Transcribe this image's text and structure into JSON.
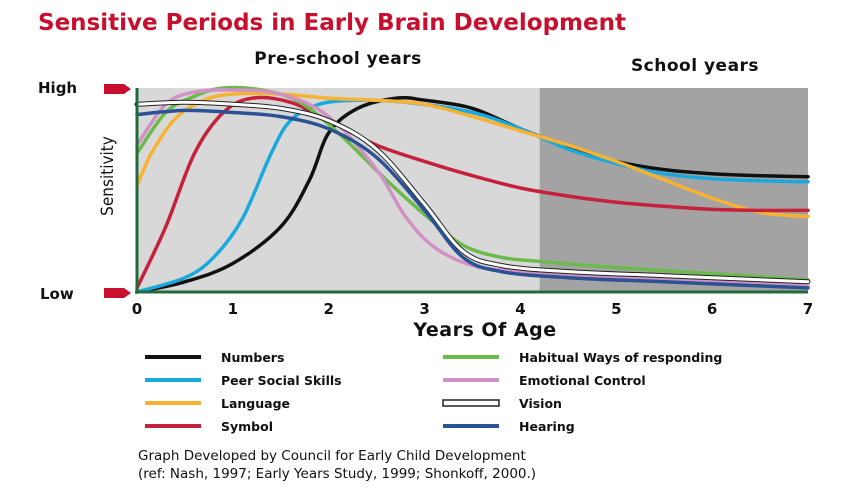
{
  "chart_data": {
    "type": "line",
    "title": "Sensitive Periods in Early Brain Development",
    "xlabel": "Years Of Age",
    "ylabel": "Sensitivity",
    "y_levels": {
      "high": "High",
      "low": "Low"
    },
    "xlim": [
      0,
      7
    ],
    "ylim": [
      0,
      1
    ],
    "x_ticks": [
      "0",
      "1",
      "2",
      "3",
      "4",
      "5",
      "6",
      "7"
    ],
    "regions": [
      {
        "label": "Pre-school years",
        "from": 0,
        "to": 4.2,
        "color": "#d8d8d8"
      },
      {
        "label": "School years",
        "from": 4.2,
        "to": 7,
        "color": "#a3a3a3"
      }
    ],
    "series": [
      {
        "name": "Numbers",
        "color": "#111111",
        "points": [
          [
            0,
            0
          ],
          [
            0.5,
            0.05
          ],
          [
            1,
            0.14
          ],
          [
            1.5,
            0.32
          ],
          [
            1.8,
            0.55
          ],
          [
            2,
            0.78
          ],
          [
            2.3,
            0.9
          ],
          [
            2.7,
            0.95
          ],
          [
            3,
            0.94
          ],
          [
            3.5,
            0.9
          ],
          [
            4,
            0.8
          ],
          [
            4.5,
            0.71
          ],
          [
            5,
            0.64
          ],
          [
            5.5,
            0.6
          ],
          [
            6,
            0.58
          ],
          [
            6.5,
            0.57
          ],
          [
            7,
            0.565
          ]
        ]
      },
      {
        "name": "Peer Social Skills",
        "color": "#1ba9dd",
        "points": [
          [
            0,
            0
          ],
          [
            0.5,
            0.07
          ],
          [
            0.8,
            0.17
          ],
          [
            1.1,
            0.36
          ],
          [
            1.4,
            0.68
          ],
          [
            1.6,
            0.84
          ],
          [
            1.9,
            0.92
          ],
          [
            2.3,
            0.94
          ],
          [
            2.8,
            0.93
          ],
          [
            3.5,
            0.88
          ],
          [
            4,
            0.8
          ],
          [
            4.5,
            0.7
          ],
          [
            5,
            0.63
          ],
          [
            5.5,
            0.58
          ],
          [
            6,
            0.555
          ],
          [
            6.5,
            0.545
          ],
          [
            7,
            0.54
          ]
        ]
      },
      {
        "name": "Language",
        "color": "#f7b232",
        "points": [
          [
            0,
            0.52
          ],
          [
            0.15,
            0.68
          ],
          [
            0.4,
            0.85
          ],
          [
            0.7,
            0.94
          ],
          [
            1,
            0.97
          ],
          [
            1.5,
            0.97
          ],
          [
            2,
            0.95
          ],
          [
            2.5,
            0.94
          ],
          [
            3,
            0.92
          ],
          [
            3.5,
            0.86
          ],
          [
            4,
            0.79
          ],
          [
            4.5,
            0.72
          ],
          [
            5,
            0.64
          ],
          [
            5.5,
            0.55
          ],
          [
            6,
            0.46
          ],
          [
            6.5,
            0.39
          ],
          [
            7,
            0.37
          ]
        ]
      },
      {
        "name": "Symbol",
        "color": "#c5213b",
        "points": [
          [
            0,
            0.02
          ],
          [
            0.3,
            0.32
          ],
          [
            0.6,
            0.68
          ],
          [
            0.9,
            0.88
          ],
          [
            1.2,
            0.95
          ],
          [
            1.6,
            0.93
          ],
          [
            2,
            0.84
          ],
          [
            2.5,
            0.72
          ],
          [
            3,
            0.64
          ],
          [
            3.5,
            0.57
          ],
          [
            4,
            0.51
          ],
          [
            4.5,
            0.47
          ],
          [
            5,
            0.44
          ],
          [
            5.5,
            0.42
          ],
          [
            6,
            0.405
          ],
          [
            6.5,
            0.4
          ],
          [
            7,
            0.4
          ]
        ]
      },
      {
        "name": "Habitual Ways of responding",
        "color": "#6cba4b",
        "points": [
          [
            0,
            0.68
          ],
          [
            0.3,
            0.88
          ],
          [
            0.6,
            0.96
          ],
          [
            0.9,
            1
          ],
          [
            1.3,
            0.99
          ],
          [
            1.7,
            0.93
          ],
          [
            2.1,
            0.78
          ],
          [
            2.6,
            0.55
          ],
          [
            3,
            0.38
          ],
          [
            3.4,
            0.23
          ],
          [
            3.8,
            0.17
          ],
          [
            4.2,
            0.15
          ],
          [
            5,
            0.12
          ],
          [
            6,
            0.09
          ],
          [
            7,
            0.06
          ]
        ]
      },
      {
        "name": "Emotional Control",
        "color": "#d291c4",
        "points": [
          [
            0,
            0.72
          ],
          [
            0.3,
            0.92
          ],
          [
            0.6,
            0.98
          ],
          [
            1,
            0.99
          ],
          [
            1.5,
            0.97
          ],
          [
            2,
            0.86
          ],
          [
            2.5,
            0.6
          ],
          [
            2.8,
            0.37
          ],
          [
            3.1,
            0.22
          ],
          [
            3.5,
            0.13
          ],
          [
            4,
            0.1
          ],
          [
            5,
            0.07
          ],
          [
            6,
            0.05
          ],
          [
            7,
            0.03
          ]
        ]
      },
      {
        "name": "Vision",
        "color": "#ffffff",
        "outlined": true,
        "points": [
          [
            0,
            0.92
          ],
          [
            0.5,
            0.93
          ],
          [
            1,
            0.92
          ],
          [
            1.5,
            0.9
          ],
          [
            2,
            0.84
          ],
          [
            2.5,
            0.7
          ],
          [
            3,
            0.43
          ],
          [
            3.4,
            0.2
          ],
          [
            3.8,
            0.13
          ],
          [
            4.5,
            0.1
          ],
          [
            5.5,
            0.08
          ],
          [
            6.5,
            0.06
          ],
          [
            7,
            0.05
          ]
        ]
      },
      {
        "name": "Hearing",
        "color": "#2a5294",
        "points": [
          [
            0,
            0.87
          ],
          [
            0.5,
            0.89
          ],
          [
            1,
            0.88
          ],
          [
            1.5,
            0.86
          ],
          [
            2,
            0.8
          ],
          [
            2.5,
            0.66
          ],
          [
            3,
            0.4
          ],
          [
            3.4,
            0.17
          ],
          [
            3.8,
            0.1
          ],
          [
            4.5,
            0.07
          ],
          [
            5.5,
            0.05
          ],
          [
            6.5,
            0.03
          ],
          [
            7,
            0.02
          ]
        ]
      }
    ],
    "legend": {
      "placement": "bottom",
      "columns": 2
    },
    "note_line1": "Graph Developed by Council for Early Child Development",
    "note_line2": "(ref: Nash, 1997; Early Years Study, 1999; Shonkoff, 2000.)"
  }
}
